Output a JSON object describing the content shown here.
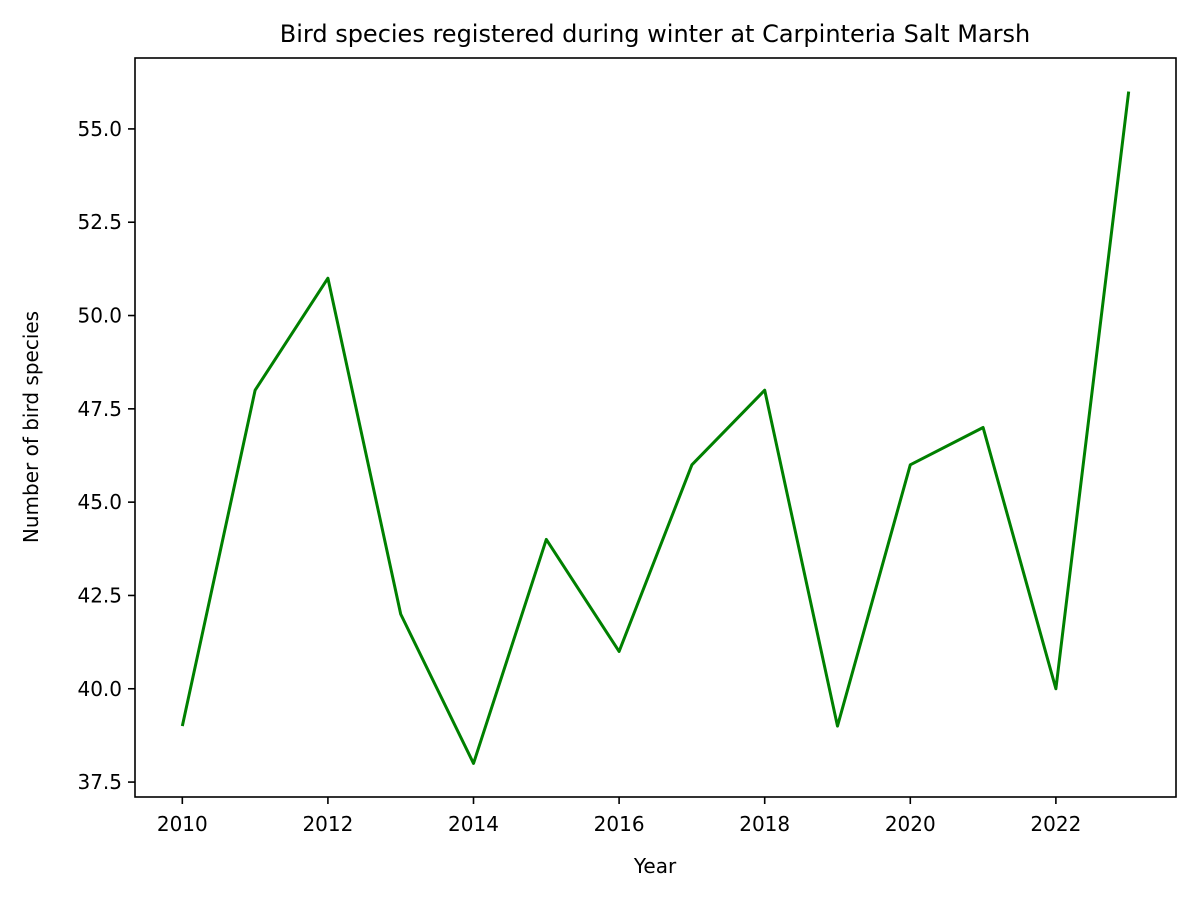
{
  "chart_data": {
    "type": "line",
    "title": "Bird species registered during winter at Carpinteria Salt Marsh",
    "xlabel": "Year",
    "ylabel": "Number of bird species",
    "x": [
      2010,
      2011,
      2012,
      2013,
      2014,
      2015,
      2016,
      2017,
      2018,
      2019,
      2020,
      2021,
      2022,
      2023
    ],
    "series": [
      {
        "values": [
          39,
          48,
          51,
          42,
          38,
          44,
          41,
          46,
          48,
          39,
          46,
          47,
          40,
          56
        ],
        "color": "#008000"
      }
    ],
    "xticks": [
      2010,
      2012,
      2014,
      2016,
      2018,
      2020,
      2022
    ],
    "xtick_labels": [
      "2010",
      "2012",
      "2014",
      "2016",
      "2018",
      "2020",
      "2022"
    ],
    "yticks": [
      37.5,
      40.0,
      42.5,
      45.0,
      47.5,
      50.0,
      52.5,
      55.0
    ],
    "ytick_labels": [
      "37.5",
      "40.0",
      "42.5",
      "45.0",
      "47.5",
      "50.0",
      "52.5",
      "55.0"
    ],
    "xlim": [
      2009.35,
      2023.65
    ],
    "ylim": [
      37.1,
      56.9
    ],
    "grid": false,
    "legend": false
  }
}
